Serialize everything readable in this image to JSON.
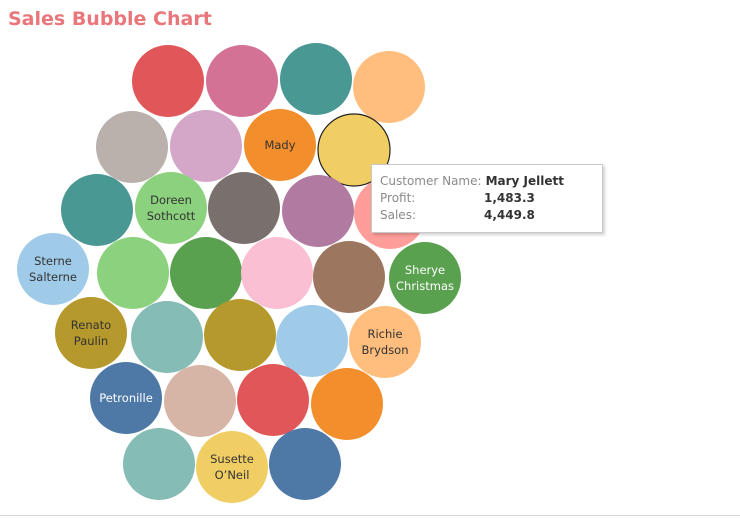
{
  "title": "Sales Bubble Chart",
  "chart_data": {
    "type": "bubble",
    "title": "Sales Bubble Chart",
    "bubbles": [
      {
        "label": "",
        "color": "#e15759"
      },
      {
        "label": "",
        "color": "#d37295"
      },
      {
        "label": "",
        "color": "#499894"
      },
      {
        "label": "",
        "color": "#ffbe7d"
      },
      {
        "label": "",
        "color": "#bab0ac"
      },
      {
        "label": "",
        "color": "#d4a6c8"
      },
      {
        "label": "Mady",
        "color": "#f28e2b"
      },
      {
        "label": "",
        "color": "#f1ce63",
        "highlighted": true
      },
      {
        "label": "",
        "color": "#499894"
      },
      {
        "label": "Doreen Sothcott",
        "color": "#8cd17d"
      },
      {
        "label": "",
        "color": "#79706e"
      },
      {
        "label": "",
        "color": "#b07aa1"
      },
      {
        "label": "",
        "color": "#ff9d9a"
      },
      {
        "label": "Sterne Salterne",
        "color": "#a0cbe8"
      },
      {
        "label": "",
        "color": "#8cd17d"
      },
      {
        "label": "",
        "color": "#59a14f"
      },
      {
        "label": "",
        "color": "#fabfd2"
      },
      {
        "label": "",
        "color": "#9d7660"
      },
      {
        "label": "Sherye Christmas",
        "color": "#59a14f"
      },
      {
        "label": "Renato Paulin",
        "color": "#b6992d"
      },
      {
        "label": "",
        "color": "#86bcb6"
      },
      {
        "label": "",
        "color": "#b6992d"
      },
      {
        "label": "",
        "color": "#a0cbe8"
      },
      {
        "label": "Richie Brydson",
        "color": "#ffbe7d"
      },
      {
        "label": "Petronille",
        "color": "#4e79a7"
      },
      {
        "label": "",
        "color": "#d7b5a6"
      },
      {
        "label": "",
        "color": "#e15759"
      },
      {
        "label": "",
        "color": "#f28e2b"
      },
      {
        "label": "",
        "color": "#86bcb6"
      },
      {
        "label": "Susette O’Neil",
        "color": "#f1ce63"
      },
      {
        "label": "",
        "color": "#4e79a7"
      }
    ],
    "tooltip": {
      "customer_label": "Customer Name:",
      "customer_value": "Mary Jellett",
      "profit_label": "Profit:",
      "profit_value": "1,483.3",
      "sales_label": "Sales:",
      "sales_value": "4,449.8"
    }
  }
}
